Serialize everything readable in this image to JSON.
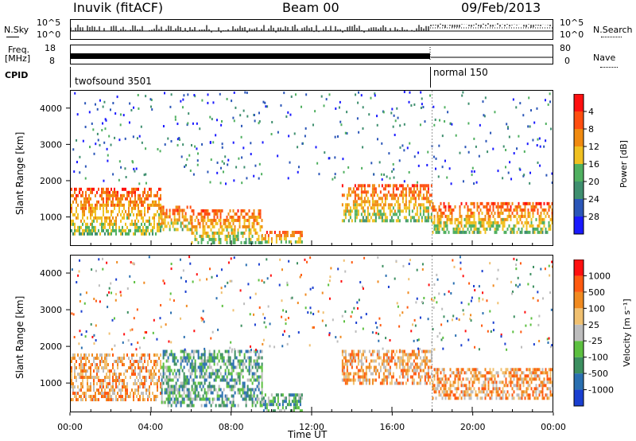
{
  "header": {
    "station": "Inuvik (fitACF)",
    "beam": "Beam 00",
    "date": "09/Feb/2013"
  },
  "top_panels": {
    "nsky_label": "N.Sky",
    "nsky_ticks": [
      "10^5",
      "10^0"
    ],
    "nsearch_label": "N.Search",
    "nsearch_ticks": [
      "10^5",
      "10^0"
    ],
    "freq_label": "Freq.",
    "freq_unit": "[MHz]",
    "freq_ticks": [
      "18",
      "8"
    ],
    "nave_label": "Nave",
    "nave_ticks": [
      "80",
      "0"
    ],
    "cpid_label": "CPID",
    "cpid_segments": [
      "twofsound 3501",
      "normal 150"
    ]
  },
  "chart_data": [
    {
      "type": "heatmap",
      "panel": "power",
      "ylabel": "Slant Range [km]",
      "yticks": [
        1000,
        2000,
        3000,
        4000
      ],
      "ylim": [
        200,
        4500
      ],
      "xticks": [
        "00:00",
        "04:00",
        "08:00",
        "12:00",
        "16:00",
        "20:00",
        "00:00"
      ],
      "xlim_hours": [
        0,
        24
      ],
      "colorbar_label": "Power [dB]",
      "colorbar_ticks": [
        "4",
        "8",
        "12",
        "16",
        "20",
        "24",
        "28"
      ],
      "colorbar_colors": [
        "#1a1aff",
        "#2b56b8",
        "#3f8f6f",
        "#50b060",
        "#f0c020",
        "#f08a10",
        "#ff4e10",
        "#ff1010"
      ],
      "echo_bands": [
        {
          "t0": 0.0,
          "t1": 4.5,
          "r0": 500,
          "r1": 1800
        },
        {
          "t0": 4.5,
          "t1": 6.0,
          "r0": 600,
          "r1": 1300
        },
        {
          "t0": 6.0,
          "t1": 9.5,
          "r0": 300,
          "r1": 1200
        },
        {
          "t0": 9.5,
          "t1": 11.5,
          "r0": 250,
          "r1": 600
        },
        {
          "t0": 13.5,
          "t1": 18.0,
          "r0": 900,
          "r1": 1900
        },
        {
          "t0": 18.0,
          "t1": 24.0,
          "r0": 600,
          "r1": 1400
        }
      ]
    },
    {
      "type": "heatmap",
      "panel": "velocity",
      "ylabel": "Slant Range [km]",
      "yticks": [
        1000,
        2000,
        3000,
        4000
      ],
      "ylim": [
        200,
        4500
      ],
      "xticks": [
        "00:00",
        "04:00",
        "08:00",
        "12:00",
        "16:00",
        "20:00",
        "00:00"
      ],
      "xlim_hours": [
        0,
        24
      ],
      "xlabel": "Time UT",
      "colorbar_label": "Velocity [m s⁻¹]",
      "colorbar_ticks": [
        "1000",
        "500",
        "100",
        "25",
        "-25",
        "-100",
        "-500",
        "-1000"
      ],
      "colorbar_colors": [
        "#1a3fd0",
        "#2a6fb0",
        "#3c8f60",
        "#5cc040",
        "#bdbdbd",
        "#f0c070",
        "#f08a20",
        "#ff5a10",
        "#ff1010"
      ],
      "echo_bands": [
        {
          "t0": 0.0,
          "t1": 4.5,
          "r0": 500,
          "r1": 1800
        },
        {
          "t0": 4.5,
          "t1": 9.5,
          "r0": 400,
          "r1": 1900
        },
        {
          "t0": 9.5,
          "t1": 11.5,
          "r0": 250,
          "r1": 700
        },
        {
          "t0": 13.5,
          "t1": 18.0,
          "r0": 1000,
          "r1": 1900
        },
        {
          "t0": 18.0,
          "t1": 24.0,
          "r0": 600,
          "r1": 1400
        }
      ]
    }
  ]
}
